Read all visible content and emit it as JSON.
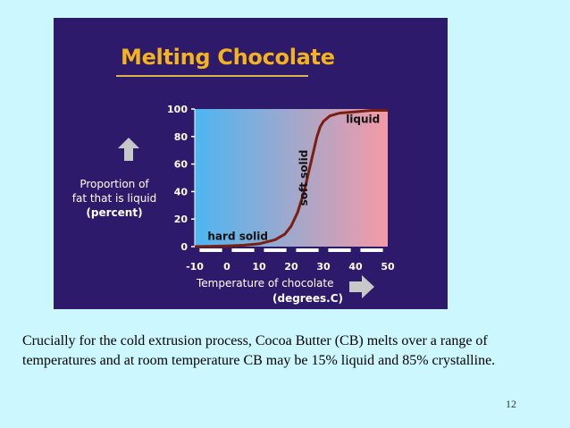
{
  "colors": {
    "slide_background": "#ccf7ff",
    "figure_background": "#2e1a6b",
    "title_color": "#f3b21e",
    "curve_color": "#7a1f10",
    "plot_gradient_cold": "#4cb6f2",
    "plot_gradient_warm": "#f49aa7"
  },
  "chart_data": {
    "type": "line",
    "title": "Melting Chocolate",
    "ylabel_lines": [
      "Proportion of",
      "fat that is liquid",
      "(percent)"
    ],
    "xlabel": "Temperature of chocolate",
    "xunit": "(degrees.C)",
    "x_ticks": [
      -10,
      0,
      10,
      20,
      30,
      40,
      50
    ],
    "y_ticks": [
      0,
      20,
      40,
      60,
      80,
      100
    ],
    "xlim": [
      -10,
      50
    ],
    "ylim": [
      0,
      100
    ],
    "grid": false,
    "series": [
      {
        "x": [
          -10,
          0,
          5,
          10,
          15,
          18,
          20,
          22,
          24,
          25,
          26,
          27,
          28,
          29,
          30,
          32,
          35,
          40,
          45,
          50
        ],
        "y": [
          0,
          0.5,
          1,
          2,
          5,
          9,
          15,
          25,
          40,
          50,
          60,
          70,
          80,
          87,
          91,
          95,
          97,
          98,
          99,
          99
        ]
      }
    ],
    "annotations": [
      {
        "text": "hard solid",
        "x": -6,
        "y": 5,
        "rotate": 0
      },
      {
        "text": "soft solid",
        "x": 25,
        "y": 50,
        "rotate": -90
      },
      {
        "text": "liquid",
        "x": 37,
        "y": 90,
        "rotate": 0
      }
    ],
    "arrows": [
      "up-arrow-icon",
      "right-arrow-icon"
    ]
  },
  "caption": "Crucially for the cold extrusion process, Cocoa Butter (CB) melts over a range of temperatures and at room temperature CB may be 15% liquid and 85% crystalline.",
  "page_number": "12"
}
